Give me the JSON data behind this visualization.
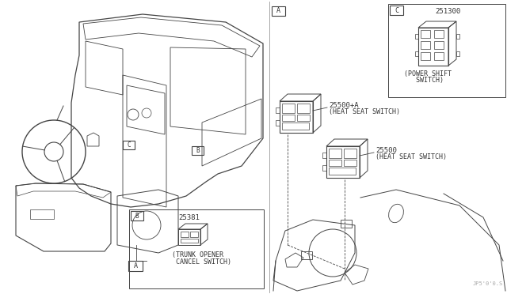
{
  "bg_color": "#ffffff",
  "line_color": "#444444",
  "light_line_color": "#888888",
  "text_color": "#333333",
  "labels": {
    "part_25381": "25381",
    "part_25500A": "25500+A",
    "part_25500": "25500",
    "part_251300": "251300",
    "label_trunk1": "(TRUNK OPENER",
    "label_trunk2": " CANCEL SWITCH)",
    "label_heat_A1": "(HEAT SEAT SWITCH)",
    "label_heat1": "(HEAT SEAT SWITCH)",
    "label_power1": "(POWER SHIFT",
    "label_power2": "   SWITCH)",
    "watermark": "JP5'0'0.S"
  },
  "fig_width": 6.4,
  "fig_height": 3.72,
  "dpi": 100
}
